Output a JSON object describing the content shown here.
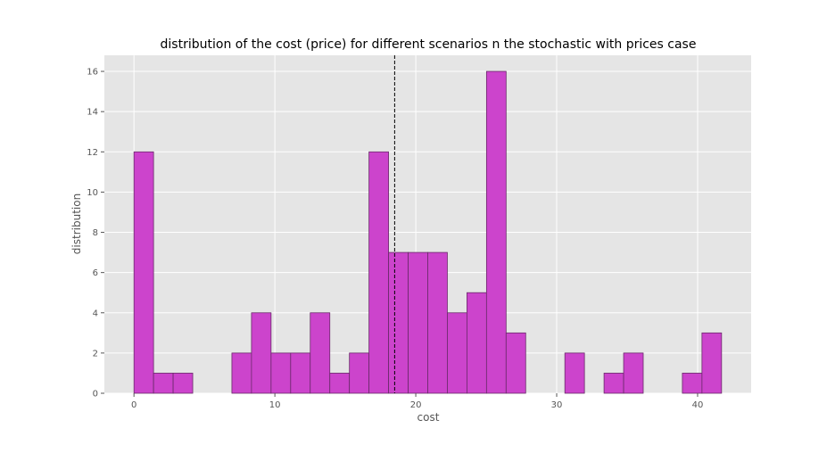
{
  "chart_data": {
    "type": "bar",
    "title": "distribution of the cost (price) for different scenarios n the stochastic with prices case",
    "xlabel": "cost",
    "ylabel": "distribution",
    "xlim": [
      -2.1,
      43.8
    ],
    "ylim": [
      0,
      16.8
    ],
    "xticks": [
      0,
      10,
      20,
      30,
      40
    ],
    "yticks": [
      0,
      2,
      4,
      6,
      8,
      10,
      12,
      14,
      16
    ],
    "grid": true,
    "bin_edges": [
      0,
      1.39,
      2.78,
      4.17,
      5.56,
      6.95,
      8.34,
      9.73,
      11.12,
      12.51,
      13.9,
      15.29,
      16.68,
      18.07,
      19.46,
      20.85,
      22.24,
      23.63,
      25.02,
      26.41,
      27.8,
      29.19,
      30.58,
      31.97,
      33.36,
      34.75,
      36.14,
      37.53,
      38.92,
      40.31,
      41.7
    ],
    "values": [
      12,
      1,
      1,
      0,
      0,
      2,
      4,
      2,
      2,
      4,
      1,
      2,
      12,
      7,
      7,
      7,
      4,
      5,
      16,
      3,
      0,
      0,
      2,
      0,
      1,
      2,
      0,
      0,
      1,
      3
    ],
    "mean_line": 18.5,
    "colors": {
      "bar": "#cc44cc",
      "bar_edge": "#6a2a6a",
      "background": "#e5e5e5",
      "grid": "#ffffff",
      "mean_line": "#000000"
    }
  }
}
